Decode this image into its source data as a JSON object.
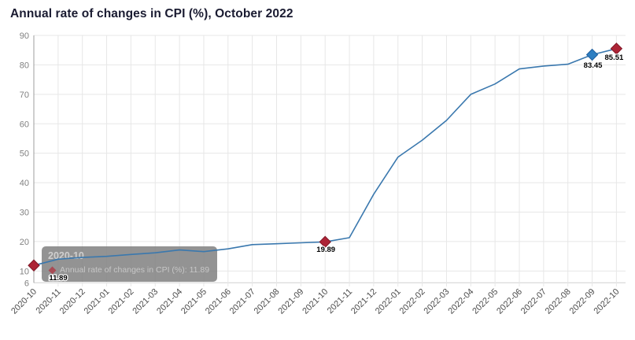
{
  "title": "Annual rate of changes in CPI (%), October 2022",
  "tooltip": {
    "header": "2020-10",
    "body": "Annual rate of changes in CPI (%): 11.89"
  },
  "chart_data": {
    "type": "line",
    "title": "Annual rate of changes in CPI (%), October 2022",
    "xlabel": "",
    "ylabel": "",
    "legend": "none",
    "grid": true,
    "ylim": [
      6,
      90
    ],
    "yticks": [
      90,
      80,
      70,
      60,
      50,
      40,
      30,
      20,
      10,
      6
    ],
    "categories": [
      "2020-10",
      "2020-11",
      "2020-12",
      "2021-01",
      "2021-02",
      "2021-03",
      "2021-04",
      "2021-05",
      "2021-06",
      "2021-07",
      "2021-08",
      "2021-09",
      "2021-10",
      "2021-11",
      "2021-12",
      "2022-01",
      "2022-02",
      "2022-03",
      "2022-04",
      "2022-05",
      "2022-06",
      "2022-07",
      "2022-08",
      "2022-09",
      "2022-10"
    ],
    "series": [
      {
        "name": "Annual rate of changes in CPI (%)",
        "values": [
          11.89,
          14.03,
          14.6,
          14.97,
          15.61,
          16.19,
          17.14,
          16.59,
          17.53,
          18.95,
          19.25,
          19.58,
          19.89,
          21.31,
          36.08,
          48.69,
          54.44,
          61.14,
          69.97,
          73.5,
          78.62,
          79.6,
          80.21,
          83.45,
          85.51
        ]
      }
    ],
    "highlight_points": [
      {
        "index": 0,
        "category": "2020-10",
        "value": 11.89,
        "label": "11.89",
        "marker": "diamond",
        "fill": "#ad2436",
        "border": "#7e1726"
      },
      {
        "index": 12,
        "category": "2021-10",
        "value": 19.89,
        "label": "19.89",
        "marker": "diamond",
        "fill": "#ad2436",
        "border": "#7e1726"
      },
      {
        "index": 23,
        "category": "2022-09",
        "value": 83.45,
        "label": "83.45",
        "marker": "diamond",
        "fill": "#2e7fc2",
        "border": "#1f5f9e"
      },
      {
        "index": 24,
        "category": "2022-10",
        "value": 85.51,
        "label": "85.51",
        "marker": "diamond",
        "fill": "#ad2436",
        "border": "#7e1726"
      }
    ],
    "colors": {
      "line": "#3a78ae",
      "grid": "#e7e7e7",
      "axis_line": "#9c9c9c",
      "bottom_line": "#d0d0d0",
      "y_tick_label": "#808080",
      "x_tick_label": "#4c4c4c",
      "data_label": "#000000"
    }
  }
}
